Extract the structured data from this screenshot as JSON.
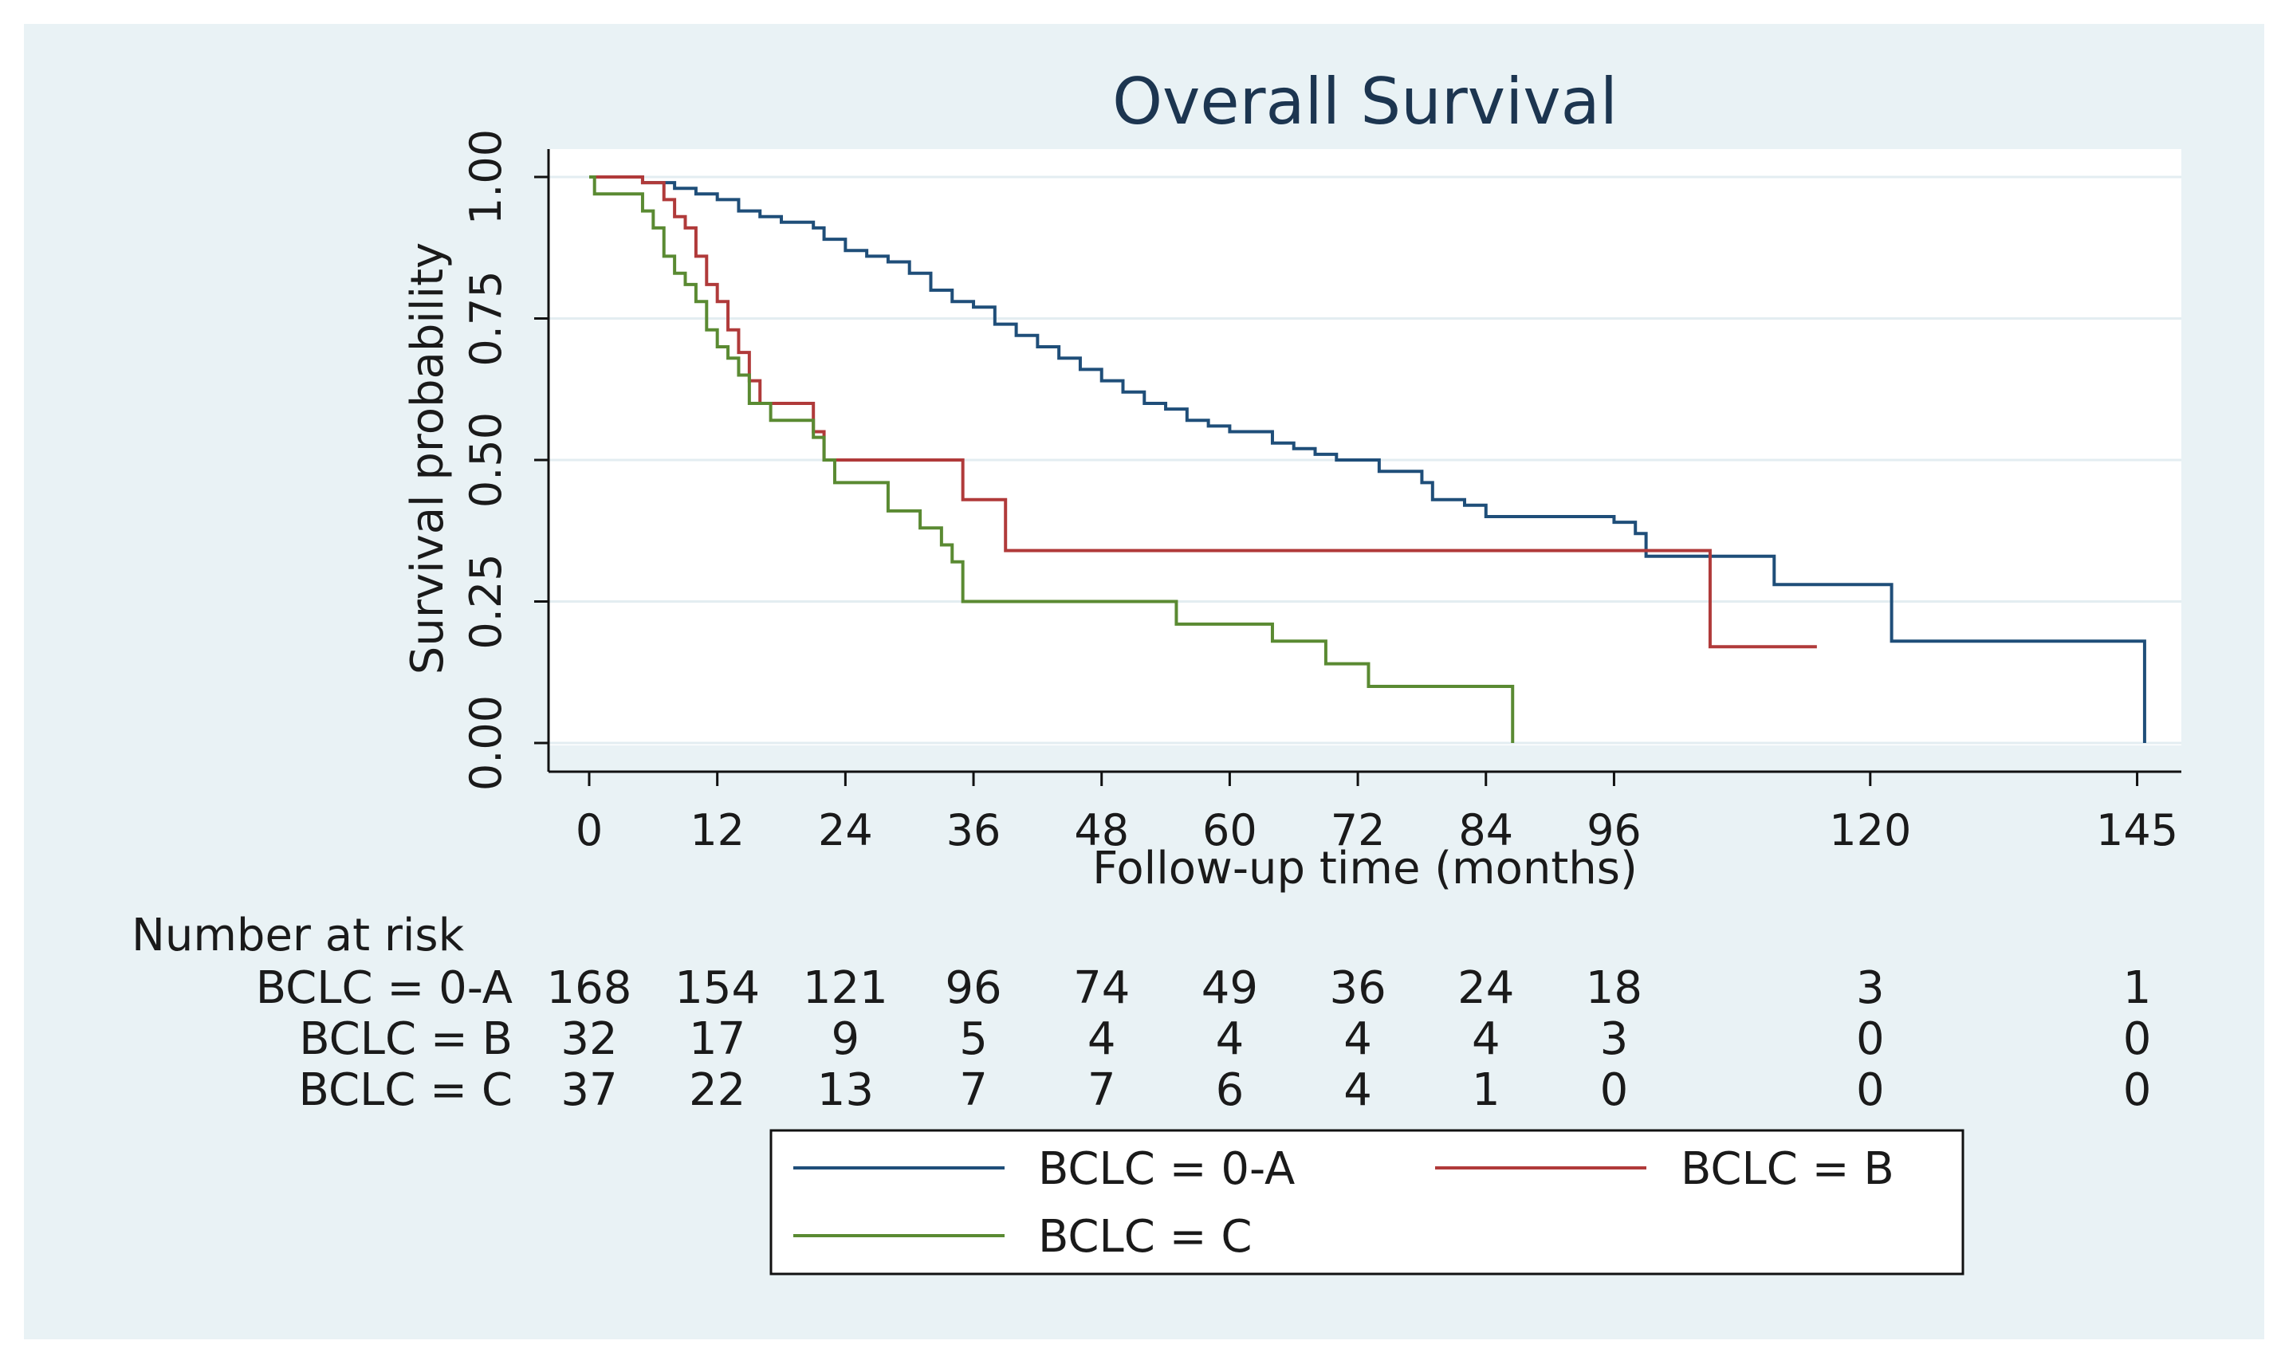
{
  "chart_data": {
    "type": "line",
    "step": true,
    "title": "Overall Survival",
    "xlabel": "Follow-up time (months)",
    "ylabel": "Survival probability",
    "xlim": [
      0,
      148
    ],
    "ylim": [
      0,
      1.05
    ],
    "xticks": [
      0,
      12,
      24,
      36,
      48,
      60,
      72,
      84,
      96,
      120,
      145
    ],
    "yticks": [
      0,
      0.25,
      0.5,
      0.75,
      1.0
    ],
    "ytick_labels": [
      "0.00",
      "0.25",
      "0.50",
      "0.75",
      "1.00"
    ],
    "grid": true,
    "legend_position": "bottom",
    "series": [
      {
        "name": "BCLC = 0-A",
        "color": "#1f4e79",
        "points": [
          [
            0,
            1.0
          ],
          [
            3,
            1.0
          ],
          [
            5,
            0.99
          ],
          [
            8,
            0.98
          ],
          [
            10,
            0.97
          ],
          [
            12,
            0.96
          ],
          [
            14,
            0.94
          ],
          [
            16,
            0.93
          ],
          [
            18,
            0.92
          ],
          [
            21,
            0.91
          ],
          [
            22,
            0.89
          ],
          [
            24,
            0.87
          ],
          [
            26,
            0.86
          ],
          [
            28,
            0.85
          ],
          [
            30,
            0.83
          ],
          [
            32,
            0.8
          ],
          [
            34,
            0.78
          ],
          [
            36,
            0.77
          ],
          [
            38,
            0.74
          ],
          [
            40,
            0.72
          ],
          [
            42,
            0.7
          ],
          [
            44,
            0.68
          ],
          [
            46,
            0.66
          ],
          [
            48,
            0.64
          ],
          [
            50,
            0.62
          ],
          [
            52,
            0.6
          ],
          [
            54,
            0.59
          ],
          [
            56,
            0.57
          ],
          [
            58,
            0.56
          ],
          [
            60,
            0.55
          ],
          [
            64,
            0.53
          ],
          [
            66,
            0.52
          ],
          [
            68,
            0.51
          ],
          [
            70,
            0.5
          ],
          [
            74,
            0.48
          ],
          [
            78,
            0.46
          ],
          [
            79,
            0.43
          ],
          [
            82,
            0.42
          ],
          [
            84,
            0.4
          ],
          [
            90,
            0.4
          ],
          [
            96,
            0.39
          ],
          [
            98,
            0.37
          ],
          [
            99,
            0.33
          ],
          [
            111,
            0.28
          ],
          [
            122,
            0.18
          ],
          [
            145.7,
            0.0
          ]
        ]
      },
      {
        "name": "BCLC = B",
        "color": "#b03a3a",
        "points": [
          [
            0,
            1.0
          ],
          [
            5,
            0.99
          ],
          [
            7,
            0.96
          ],
          [
            8,
            0.93
          ],
          [
            9,
            0.91
          ],
          [
            10,
            0.86
          ],
          [
            11,
            0.81
          ],
          [
            12,
            0.78
          ],
          [
            13,
            0.73
          ],
          [
            14,
            0.69
          ],
          [
            15,
            0.64
          ],
          [
            16,
            0.6
          ],
          [
            21,
            0.55
          ],
          [
            22,
            0.5
          ],
          [
            35,
            0.43
          ],
          [
            39,
            0.34
          ],
          [
            105,
            0.17
          ],
          [
            115,
            0.17
          ]
        ]
      },
      {
        "name": "BCLC = C",
        "color": "#5a8a32",
        "points": [
          [
            0,
            1.0
          ],
          [
            0.5,
            0.97
          ],
          [
            4,
            0.97
          ],
          [
            5,
            0.94
          ],
          [
            6,
            0.91
          ],
          [
            7,
            0.86
          ],
          [
            8,
            0.83
          ],
          [
            9,
            0.81
          ],
          [
            10,
            0.78
          ],
          [
            11,
            0.73
          ],
          [
            12,
            0.7
          ],
          [
            13,
            0.68
          ],
          [
            14,
            0.65
          ],
          [
            15,
            0.6
          ],
          [
            17,
            0.57
          ],
          [
            21,
            0.54
          ],
          [
            22,
            0.5
          ],
          [
            23,
            0.46
          ],
          [
            28,
            0.41
          ],
          [
            31,
            0.38
          ],
          [
            33,
            0.35
          ],
          [
            34,
            0.32
          ],
          [
            35,
            0.25
          ],
          [
            52,
            0.25
          ],
          [
            55,
            0.21
          ],
          [
            64,
            0.18
          ],
          [
            69,
            0.14
          ],
          [
            73,
            0.1
          ],
          [
            86.5,
            0.1
          ],
          [
            86.5,
            0.0
          ]
        ]
      }
    ],
    "risk_table": {
      "heading": "Number at risk",
      "times": [
        0,
        12,
        24,
        36,
        48,
        60,
        72,
        84,
        96,
        120,
        145
      ],
      "rows": [
        {
          "label": "BCLC = 0-A",
          "values": [
            168,
            154,
            121,
            96,
            74,
            49,
            36,
            24,
            18,
            3,
            1
          ]
        },
        {
          "label": "BCLC = B",
          "values": [
            32,
            17,
            9,
            5,
            4,
            4,
            4,
            4,
            3,
            0,
            0
          ]
        },
        {
          "label": "BCLC = C",
          "values": [
            37,
            22,
            13,
            7,
            7,
            6,
            4,
            1,
            0,
            0,
            0
          ]
        }
      ]
    }
  }
}
